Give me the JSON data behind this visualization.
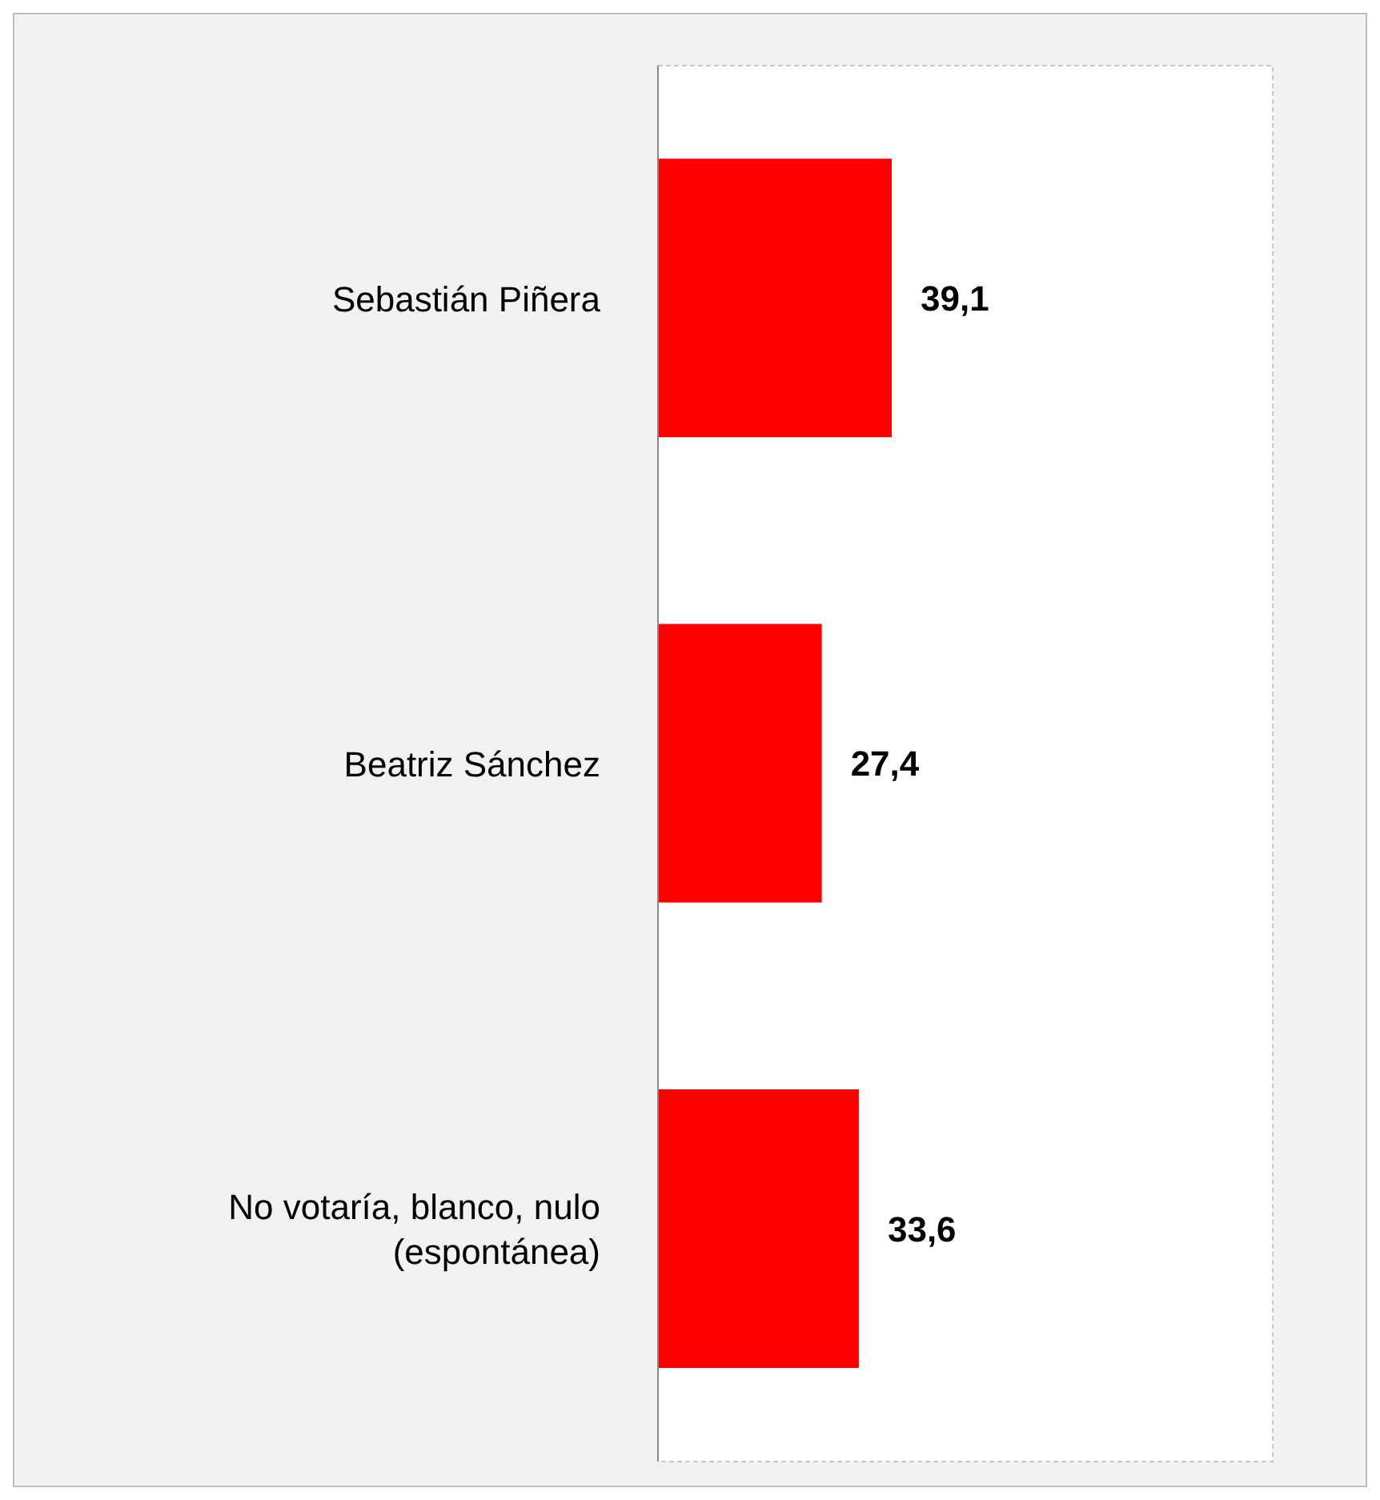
{
  "chart_data": {
    "type": "bar",
    "orientation": "horizontal",
    "categories": [
      "Sebastián Piñera",
      "Beatriz Sánchez",
      "No votaría, blanco, nulo (espontánea)"
    ],
    "values": [
      39.1,
      27.4,
      33.6
    ],
    "value_labels": [
      "39,1",
      "27,4",
      "33,6"
    ],
    "color": "#ff0000",
    "tick_labels": "y"
  }
}
